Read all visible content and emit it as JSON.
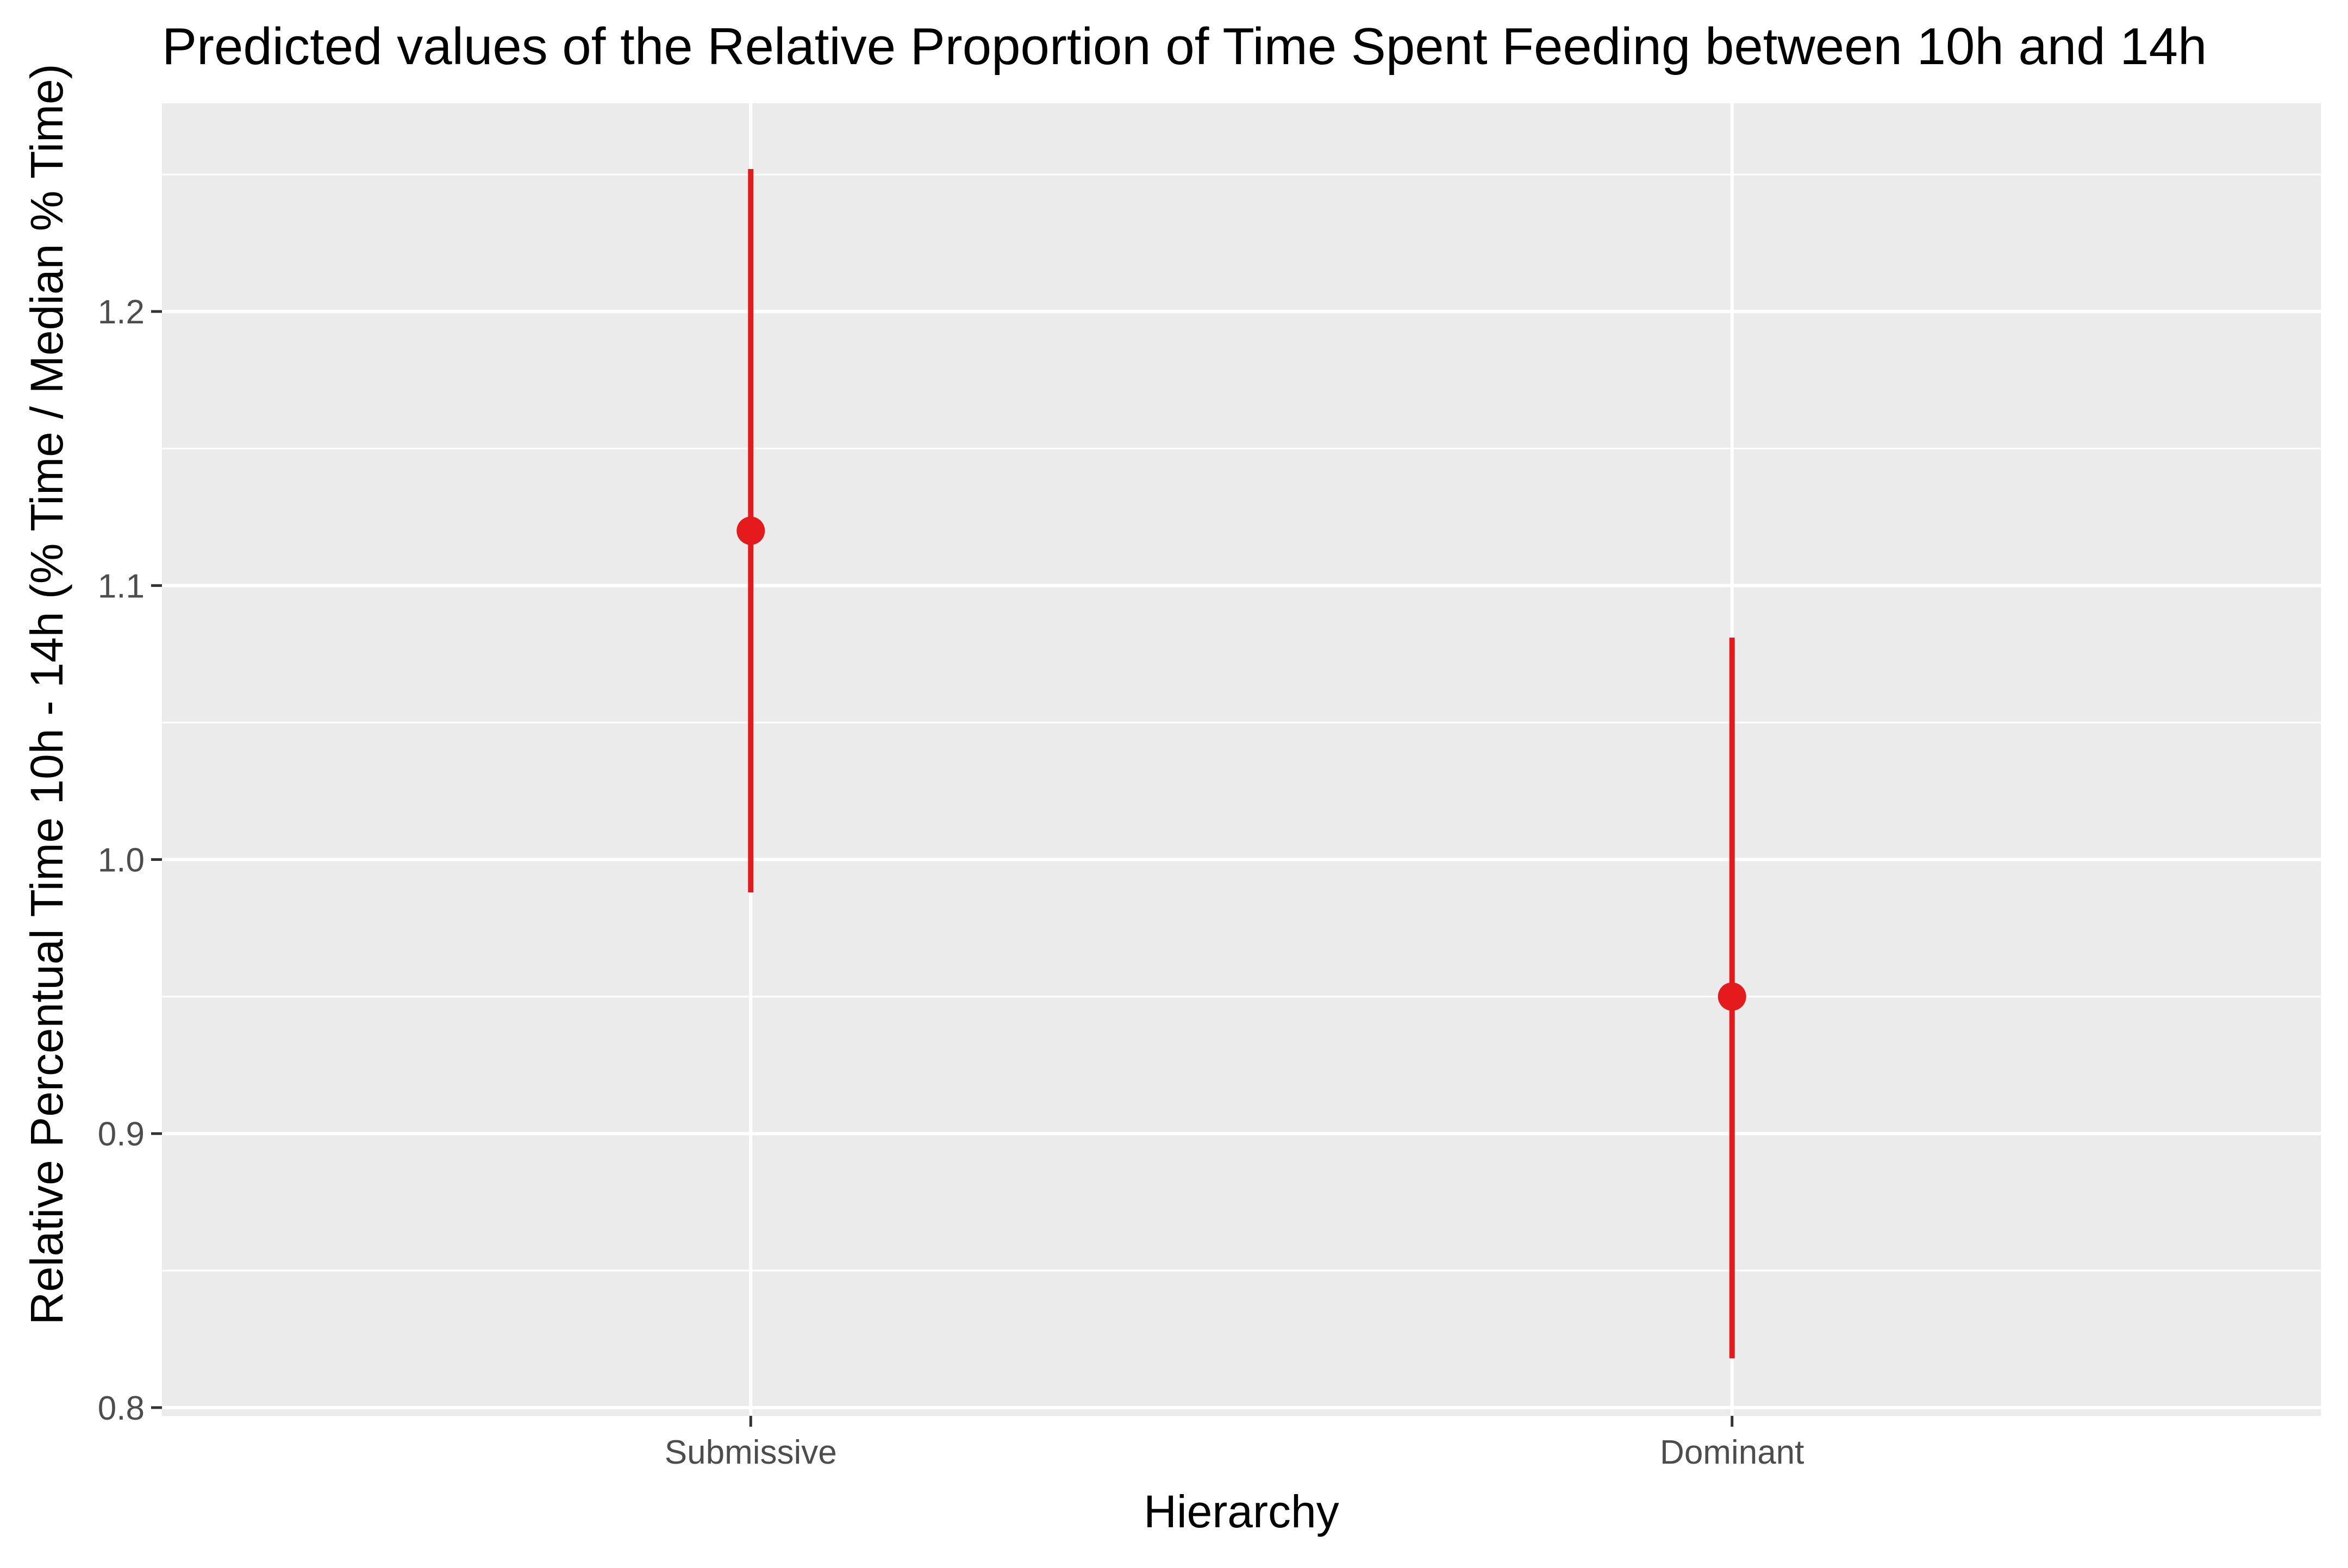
{
  "chart_data": {
    "type": "scatter",
    "title": "Predicted values of the Relative Proportion of Time Spent Feeding between 10h and 14h",
    "xlabel": "Hierarchy",
    "ylabel": "Relative Percentual Time 10h - 14h (% Time / Median % Time)",
    "categories": [
      "Submissive",
      "Dominant"
    ],
    "series": [
      {
        "values": [
          1.12,
          0.95
        ],
        "lower": [
          0.988,
          0.818
        ],
        "upper": [
          1.252,
          1.081
        ]
      }
    ],
    "ylim": [
      0.797,
      1.276
    ],
    "yticks": [
      0.8,
      0.9,
      1.0,
      1.1,
      1.2
    ],
    "ytick_labels": [
      "0.8",
      "0.9",
      "1.0",
      "1.1",
      "1.2"
    ],
    "grid": true,
    "legend": "none",
    "colors": {
      "series": "#e41a1c",
      "panel": "#ebebeb",
      "grid": "#ffffff",
      "text": "#000000",
      "tick_text": "#4d4d4d",
      "tick": "#333333"
    }
  }
}
